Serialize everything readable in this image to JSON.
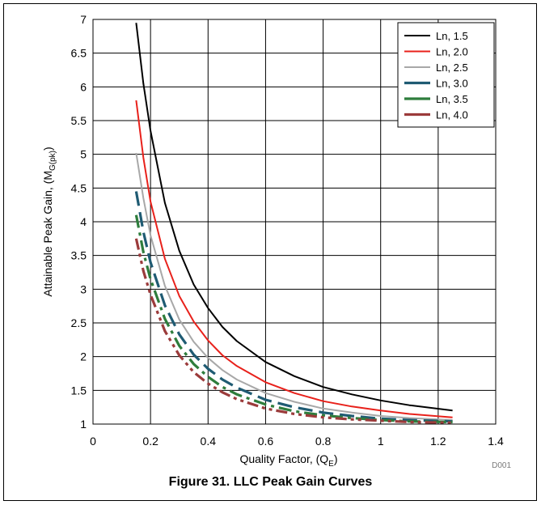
{
  "figure": {
    "caption": "Figure 31. LLC Peak Gain Curves",
    "id": "D001"
  },
  "chart_data": {
    "type": "line",
    "xlabel": "Quality Factor, (Q",
    "xlabel_sub": "E",
    "xlabel_end": ")",
    "ylabel": "Attainable Peak Gain, (M",
    "ylabel_sub": "G(pk)",
    "ylabel_end": ")",
    "xlim": [
      0,
      1.4
    ],
    "ylim": [
      1,
      7
    ],
    "xticks": [
      0,
      0.2,
      0.4,
      0.6,
      0.8,
      1,
      1.2,
      1.4
    ],
    "xtick_labels": [
      "0",
      "0.2",
      "0.4",
      "0.6",
      "0.8",
      "1",
      "1.2",
      "1.4"
    ],
    "yticks": [
      1,
      1.5,
      2,
      2.5,
      3,
      3.5,
      4,
      4.5,
      5,
      5.5,
      6,
      6.5,
      7
    ],
    "ytick_labels": [
      "1",
      "1.5",
      "2",
      "2.5",
      "3",
      "3.5",
      "4",
      "4.5",
      "5",
      "5.5",
      "6",
      "6.5",
      "7"
    ],
    "grid": true,
    "legend_position": "top-right",
    "series": [
      {
        "name": "Ln, 1.5",
        "color": "#000000",
        "dash": "solid",
        "x": [
          0.15,
          0.175,
          0.2,
          0.25,
          0.3,
          0.35,
          0.4,
          0.45,
          0.5,
          0.6,
          0.7,
          0.8,
          0.9,
          1.0,
          1.1,
          1.25
        ],
        "y": [
          6.95,
          6.05,
          5.35,
          4.28,
          3.57,
          3.07,
          2.72,
          2.44,
          2.23,
          1.92,
          1.71,
          1.55,
          1.44,
          1.35,
          1.28,
          1.2
        ]
      },
      {
        "name": "Ln, 2.0",
        "color": "#e8211b",
        "dash": "solid",
        "x": [
          0.15,
          0.175,
          0.2,
          0.25,
          0.3,
          0.35,
          0.4,
          0.45,
          0.5,
          0.6,
          0.7,
          0.8,
          0.9,
          1.0,
          1.1,
          1.25
        ],
        "y": [
          5.8,
          4.95,
          4.3,
          3.45,
          2.9,
          2.52,
          2.24,
          2.02,
          1.86,
          1.62,
          1.46,
          1.34,
          1.26,
          1.2,
          1.15,
          1.1
        ]
      },
      {
        "name": "Ln, 2.5",
        "color": "#a8a8a8",
        "dash": "solid",
        "x": [
          0.15,
          0.175,
          0.2,
          0.25,
          0.3,
          0.35,
          0.4,
          0.45,
          0.5,
          0.6,
          0.7,
          0.8,
          0.9,
          1.0,
          1.1,
          1.25
        ],
        "y": [
          5.02,
          4.35,
          3.8,
          3.05,
          2.55,
          2.22,
          1.98,
          1.8,
          1.66,
          1.46,
          1.33,
          1.23,
          1.17,
          1.12,
          1.09,
          1.06
        ]
      },
      {
        "name": "Ln, 3.0",
        "color": "#1f5b73",
        "dash": "long",
        "x": [
          0.15,
          0.175,
          0.2,
          0.25,
          0.3,
          0.35,
          0.4,
          0.45,
          0.5,
          0.6,
          0.7,
          0.8,
          0.9,
          1.0,
          1.1,
          1.25
        ],
        "y": [
          4.45,
          3.85,
          3.4,
          2.76,
          2.33,
          2.03,
          1.82,
          1.66,
          1.54,
          1.36,
          1.25,
          1.17,
          1.12,
          1.08,
          1.06,
          1.04
        ]
      },
      {
        "name": "Ln, 3.5",
        "color": "#2e7d3c",
        "dash": "dashdot",
        "x": [
          0.15,
          0.175,
          0.2,
          0.25,
          0.3,
          0.35,
          0.4,
          0.45,
          0.5,
          0.6,
          0.7,
          0.8,
          0.9,
          1.0,
          1.1,
          1.25
        ],
        "y": [
          4.1,
          3.55,
          3.15,
          2.56,
          2.16,
          1.89,
          1.7,
          1.55,
          1.44,
          1.29,
          1.19,
          1.13,
          1.09,
          1.06,
          1.04,
          1.03
        ]
      },
      {
        "name": "Ln, 4.0",
        "color": "#9b3b3b",
        "dash": "dashdotdot",
        "x": [
          0.15,
          0.175,
          0.2,
          0.25,
          0.3,
          0.35,
          0.4,
          0.45,
          0.5,
          0.6,
          0.7,
          0.8,
          0.9,
          1.0,
          1.1,
          1.25
        ],
        "y": [
          3.75,
          3.27,
          2.92,
          2.38,
          2.02,
          1.77,
          1.6,
          1.47,
          1.37,
          1.23,
          1.15,
          1.1,
          1.07,
          1.05,
          1.03,
          1.02
        ]
      }
    ]
  }
}
